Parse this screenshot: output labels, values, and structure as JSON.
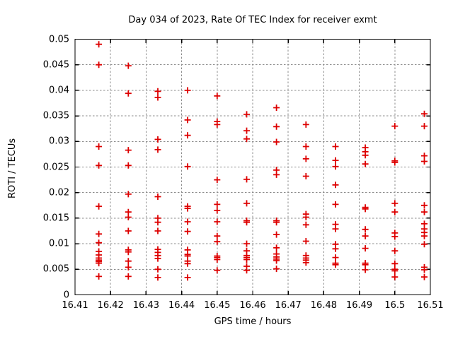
{
  "chart_data": {
    "type": "scatter",
    "title": "Day 034 of 2023, Rate Of TEC Index for receiver exmt",
    "xlabel": "GPS time / hours",
    "ylabel": "ROTI / TECUs",
    "xlim": [
      16.41,
      16.51
    ],
    "ylim": [
      0,
      0.05
    ],
    "xticks": [
      16.41,
      16.42,
      16.43,
      16.44,
      16.45,
      16.46,
      16.47,
      16.48,
      16.49,
      16.5,
      16.51
    ],
    "xtick_labels": [
      "16.41",
      "16.42",
      "16.43",
      "16.44",
      "16.45",
      "16.46",
      "16.47",
      "16.48",
      "16.49",
      "16.5",
      "16.51"
    ],
    "yticks": [
      0,
      0.005,
      0.01,
      0.015,
      0.02,
      0.025,
      0.03,
      0.035,
      0.04,
      0.045,
      0.05
    ],
    "ytick_labels": [
      "0",
      "0.005",
      "0.01",
      "0.015",
      "0.02",
      "0.025",
      "0.03",
      "0.035",
      "0.04",
      "0.045",
      "0.05"
    ],
    "grid": true,
    "legend": "none",
    "marker": "plus",
    "marker_color": "#dd0000",
    "grid_color": "#8c8c8c",
    "axis_color": "#000000",
    "background_color": "#ffffff",
    "series": [
      {
        "name": "ROTI",
        "columns": [
          {
            "x": 16.4167,
            "y": [
              0.049,
              0.045,
              0.029,
              0.0253,
              0.0173,
              0.0119,
              0.0102,
              0.0085,
              0.0078,
              0.0072,
              0.0068,
              0.0065,
              0.0062,
              0.0036
            ]
          },
          {
            "x": 16.425,
            "y": [
              0.0448,
              0.0394,
              0.0283,
              0.0253,
              0.0197,
              0.0162,
              0.0152,
              0.0125,
              0.0088,
              0.0084,
              0.0066,
              0.0054,
              0.0036
            ]
          },
          {
            "x": 16.4333,
            "y": [
              0.0398,
              0.0386,
              0.0304,
              0.0284,
              0.0192,
              0.015,
              0.0142,
              0.0125,
              0.0089,
              0.0083,
              0.0077,
              0.0071,
              0.005,
              0.0034
            ]
          },
          {
            "x": 16.4417,
            "y": [
              0.04,
              0.0342,
              0.0312,
              0.0251,
              0.0173,
              0.0169,
              0.0143,
              0.0124,
              0.0088,
              0.0079,
              0.0076,
              0.0066,
              0.0061,
              0.0034
            ]
          },
          {
            "x": 16.45,
            "y": [
              0.0389,
              0.0339,
              0.0333,
              0.0225,
              0.0177,
              0.0165,
              0.0143,
              0.0115,
              0.0104,
              0.0076,
              0.0073,
              0.0069,
              0.0048
            ]
          },
          {
            "x": 16.4583,
            "y": [
              0.0353,
              0.0321,
              0.0305,
              0.0226,
              0.0179,
              0.0145,
              0.0142,
              0.01,
              0.0086,
              0.0077,
              0.0073,
              0.0069,
              0.0056,
              0.0048
            ]
          },
          {
            "x": 16.4667,
            "y": [
              0.0366,
              0.0329,
              0.0299,
              0.0244,
              0.0235,
              0.0145,
              0.0142,
              0.0118,
              0.0092,
              0.008,
              0.0074,
              0.007,
              0.0067,
              0.0051
            ]
          },
          {
            "x": 16.475,
            "y": [
              0.0333,
              0.029,
              0.0266,
              0.0232,
              0.0158,
              0.0152,
              0.0137,
              0.0105,
              0.0077,
              0.0072,
              0.0068,
              0.0063
            ]
          },
          {
            "x": 16.4833,
            "y": [
              0.029,
              0.0263,
              0.0251,
              0.0215,
              0.0177,
              0.0138,
              0.0129,
              0.0099,
              0.009,
              0.0073,
              0.0062,
              0.0059
            ]
          },
          {
            "x": 16.4917,
            "y": [
              0.0288,
              0.028,
              0.0273,
              0.0256,
              0.0171,
              0.0168,
              0.0128,
              0.0115,
              0.0091,
              0.0062,
              0.0059,
              0.0049
            ]
          },
          {
            "x": 16.5,
            "y": [
              0.033,
              0.0262,
              0.0259,
              0.0179,
              0.0162,
              0.0121,
              0.0114,
              0.0086,
              0.0061,
              0.005,
              0.0047,
              0.0035
            ]
          },
          {
            "x": 16.5083,
            "y": [
              0.0354,
              0.033,
              0.0272,
              0.0261,
              0.0175,
              0.0162,
              0.0139,
              0.0129,
              0.0122,
              0.0115,
              0.0099,
              0.0054,
              0.0049,
              0.0035
            ]
          }
        ]
      }
    ]
  }
}
